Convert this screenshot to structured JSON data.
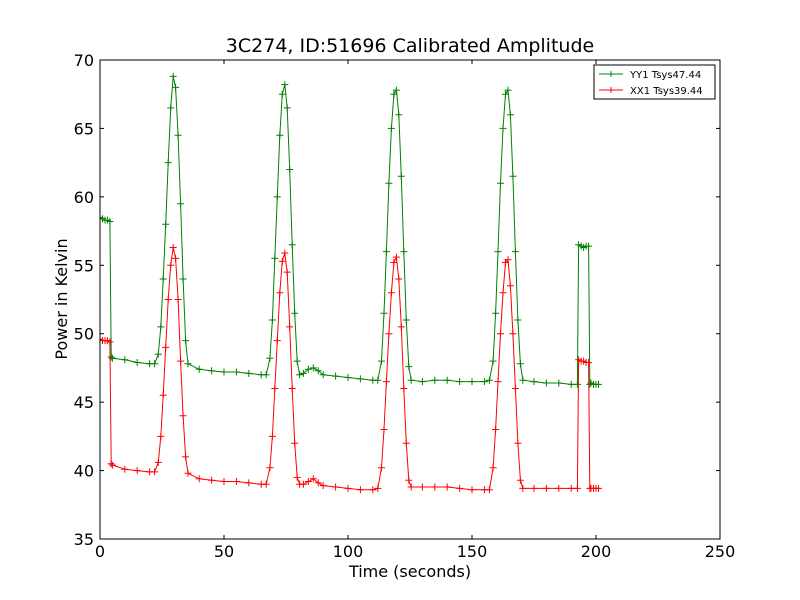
{
  "chart_data": {
    "type": "line",
    "title": "3C274, ID:51696 Calibrated Amplitude",
    "xlabel": "Time (seconds)",
    "ylabel": "Power in Kelvin",
    "xlim": [
      0,
      250
    ],
    "ylim": [
      35,
      70
    ],
    "xticks": [
      "0",
      "50",
      "100",
      "150",
      "200",
      "250"
    ],
    "yticks": [
      "35",
      "40",
      "45",
      "50",
      "55",
      "60",
      "65",
      "70"
    ],
    "grid": false,
    "legend_position": "top-right",
    "marker": "+",
    "series": [
      {
        "name": "YY1 Tsys47.44",
        "color": "#008000",
        "points": [
          [
            0,
            58.5
          ],
          [
            1,
            58.4
          ],
          [
            2,
            58.3
          ],
          [
            3,
            58.3
          ],
          [
            4,
            58.2
          ],
          [
            4.5,
            48.3
          ],
          [
            5,
            48.2
          ],
          [
            10,
            48.1
          ],
          [
            15,
            47.9
          ],
          [
            20,
            47.8
          ],
          [
            22,
            47.8
          ],
          [
            23.5,
            48.5
          ],
          [
            24.5,
            50.5
          ],
          [
            25.5,
            54
          ],
          [
            26.5,
            58
          ],
          [
            27.5,
            62.5
          ],
          [
            28.5,
            66.5
          ],
          [
            29.5,
            68.8
          ],
          [
            30.5,
            68
          ],
          [
            31.5,
            64.5
          ],
          [
            32.5,
            59.5
          ],
          [
            33.5,
            54
          ],
          [
            34.5,
            49.5
          ],
          [
            35.5,
            47.8
          ],
          [
            40,
            47.4
          ],
          [
            45,
            47.3
          ],
          [
            50,
            47.2
          ],
          [
            55,
            47.2
          ],
          [
            60,
            47.1
          ],
          [
            65,
            47.0
          ],
          [
            67,
            47.0
          ],
          [
            68.5,
            48.2
          ],
          [
            69.5,
            51
          ],
          [
            70.5,
            55.5
          ],
          [
            71.5,
            60
          ],
          [
            72.5,
            64.5
          ],
          [
            73.5,
            67.5
          ],
          [
            74.5,
            68.2
          ],
          [
            75.5,
            66.5
          ],
          [
            76.5,
            62
          ],
          [
            77.5,
            56.5
          ],
          [
            78.5,
            51.5
          ],
          [
            79.5,
            48
          ],
          [
            80.5,
            47.0
          ],
          [
            82,
            47.1
          ],
          [
            84,
            47.4
          ],
          [
            86,
            47.5
          ],
          [
            88,
            47.3
          ],
          [
            90,
            47.0
          ],
          [
            95,
            46.9
          ],
          [
            100,
            46.8
          ],
          [
            105,
            46.7
          ],
          [
            110,
            46.6
          ],
          [
            112,
            46.6
          ],
          [
            113.5,
            48
          ],
          [
            114.5,
            51.5
          ],
          [
            115.5,
            56
          ],
          [
            116.5,
            61
          ],
          [
            117.5,
            65
          ],
          [
            118.5,
            67.5
          ],
          [
            119.5,
            67.8
          ],
          [
            120.5,
            66
          ],
          [
            121.5,
            61.5
          ],
          [
            122.5,
            56
          ],
          [
            123.5,
            51
          ],
          [
            124.5,
            47.6
          ],
          [
            125.5,
            46.6
          ],
          [
            130,
            46.5
          ],
          [
            135,
            46.6
          ],
          [
            140,
            46.6
          ],
          [
            145,
            46.5
          ],
          [
            150,
            46.5
          ],
          [
            155,
            46.5
          ],
          [
            157,
            46.6
          ],
          [
            158.5,
            48
          ],
          [
            159.5,
            51.5
          ],
          [
            160.5,
            56
          ],
          [
            161.5,
            61
          ],
          [
            162.5,
            65
          ],
          [
            163.5,
            67.5
          ],
          [
            164.5,
            67.8
          ],
          [
            165.5,
            66
          ],
          [
            166.5,
            61.5
          ],
          [
            167.5,
            56
          ],
          [
            168.5,
            51
          ],
          [
            169.5,
            47.8
          ],
          [
            170.5,
            46.6
          ],
          [
            175,
            46.5
          ],
          [
            180,
            46.4
          ],
          [
            185,
            46.4
          ],
          [
            190,
            46.3
          ],
          [
            192.5,
            46.3
          ],
          [
            193,
            56.5
          ],
          [
            194,
            56.4
          ],
          [
            195,
            56.3
          ],
          [
            196,
            56.4
          ],
          [
            197,
            56.4
          ],
          [
            197.5,
            46.3
          ],
          [
            198,
            46.4
          ],
          [
            199,
            46.3
          ],
          [
            200,
            46.3
          ],
          [
            201,
            46.3
          ]
        ]
      },
      {
        "name": "XX1 Tsys39.44",
        "color": "#ff0000",
        "points": [
          [
            0,
            49.6
          ],
          [
            1,
            49.5
          ],
          [
            2,
            49.5
          ],
          [
            3,
            49.5
          ],
          [
            4,
            49.4
          ],
          [
            4.5,
            40.5
          ],
          [
            5,
            40.4
          ],
          [
            10,
            40.1
          ],
          [
            15,
            40.0
          ],
          [
            20,
            39.9
          ],
          [
            22,
            39.9
          ],
          [
            23.5,
            40.6
          ],
          [
            24.5,
            42.5
          ],
          [
            25.5,
            45.5
          ],
          [
            26.5,
            49
          ],
          [
            27.5,
            52.5
          ],
          [
            28.5,
            55
          ],
          [
            29.5,
            56.3
          ],
          [
            30.5,
            55.5
          ],
          [
            31.5,
            52.5
          ],
          [
            32.5,
            48
          ],
          [
            33.5,
            44
          ],
          [
            34.5,
            41
          ],
          [
            35.5,
            39.8
          ],
          [
            40,
            39.4
          ],
          [
            45,
            39.3
          ],
          [
            50,
            39.2
          ],
          [
            55,
            39.2
          ],
          [
            60,
            39.1
          ],
          [
            65,
            39.0
          ],
          [
            67,
            39.0
          ],
          [
            68.5,
            40.2
          ],
          [
            69.5,
            42.5
          ],
          [
            70.5,
            46
          ],
          [
            71.5,
            49.5
          ],
          [
            72.5,
            53
          ],
          [
            73.5,
            55.3
          ],
          [
            74.5,
            55.9
          ],
          [
            75.5,
            54.5
          ],
          [
            76.5,
            50.5
          ],
          [
            77.5,
            46
          ],
          [
            78.5,
            42
          ],
          [
            79.5,
            39.5
          ],
          [
            80.5,
            39.0
          ],
          [
            82,
            39.0
          ],
          [
            84,
            39.2
          ],
          [
            86,
            39.4
          ],
          [
            88,
            39.1
          ],
          [
            90,
            38.9
          ],
          [
            95,
            38.8
          ],
          [
            100,
            38.7
          ],
          [
            105,
            38.6
          ],
          [
            110,
            38.6
          ],
          [
            112,
            38.7
          ],
          [
            113.5,
            40.2
          ],
          [
            114.5,
            43
          ],
          [
            115.5,
            46.5
          ],
          [
            116.5,
            50
          ],
          [
            117.5,
            53
          ],
          [
            118.5,
            55.2
          ],
          [
            119.5,
            55.6
          ],
          [
            120.5,
            54
          ],
          [
            121.5,
            50.5
          ],
          [
            122.5,
            46
          ],
          [
            123.5,
            42
          ],
          [
            124.5,
            39.3
          ],
          [
            125.5,
            38.8
          ],
          [
            130,
            38.8
          ],
          [
            135,
            38.8
          ],
          [
            140,
            38.8
          ],
          [
            145,
            38.7
          ],
          [
            150,
            38.6
          ],
          [
            155,
            38.6
          ],
          [
            157,
            38.6
          ],
          [
            158.5,
            40.2
          ],
          [
            159.5,
            43
          ],
          [
            160.5,
            46.5
          ],
          [
            161.5,
            50
          ],
          [
            162.5,
            53
          ],
          [
            163.5,
            55.2
          ],
          [
            164.5,
            55.4
          ],
          [
            165.5,
            53.5
          ],
          [
            166.5,
            50
          ],
          [
            167.5,
            46
          ],
          [
            168.5,
            42
          ],
          [
            169.5,
            39.3
          ],
          [
            170.5,
            38.7
          ],
          [
            175,
            38.7
          ],
          [
            180,
            38.7
          ],
          [
            185,
            38.7
          ],
          [
            190,
            38.7
          ],
          [
            192.5,
            38.7
          ],
          [
            193,
            48.1
          ],
          [
            194,
            48.0
          ],
          [
            195,
            48.0
          ],
          [
            196,
            47.9
          ],
          [
            197,
            47.9
          ],
          [
            197.5,
            38.7
          ],
          [
            198,
            38.7
          ],
          [
            199,
            38.7
          ],
          [
            200,
            38.7
          ],
          [
            201,
            38.7
          ]
        ]
      }
    ]
  }
}
